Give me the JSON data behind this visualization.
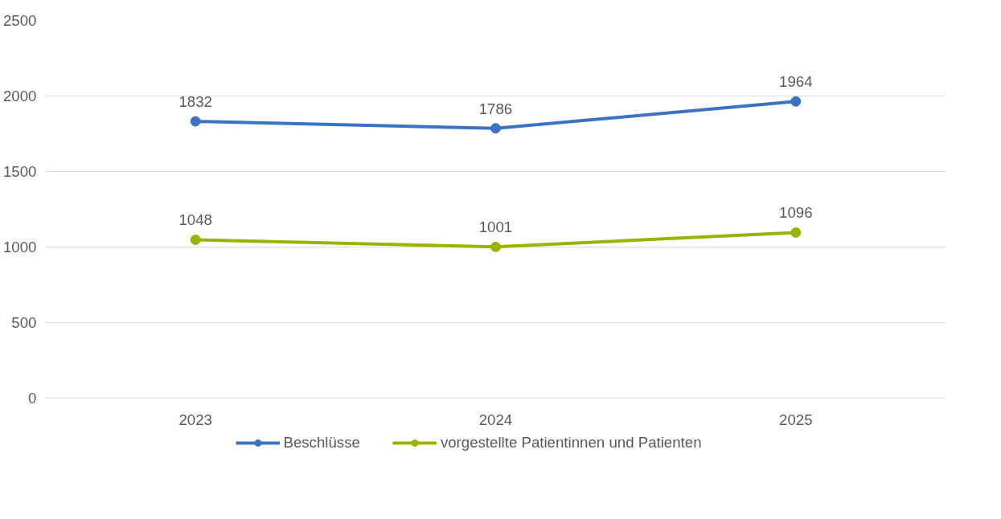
{
  "chart_data": {
    "type": "line",
    "categories": [
      "2023",
      "2024",
      "2025"
    ],
    "series": [
      {
        "name": "Beschlüsse",
        "color": "#3a72c4",
        "values": [
          1832,
          1786,
          1964
        ]
      },
      {
        "name": "vorgestellte Patientinnen und Patienten",
        "color": "#9ab300",
        "values": [
          1048,
          1001,
          1096
        ]
      }
    ],
    "ylim": [
      0,
      2500
    ],
    "yticks": [
      0,
      500,
      1000,
      1500,
      2000,
      2500
    ],
    "grid": "y",
    "legend": "bottom",
    "marker": "circle",
    "line_style": "solid",
    "data_labels": true
  }
}
